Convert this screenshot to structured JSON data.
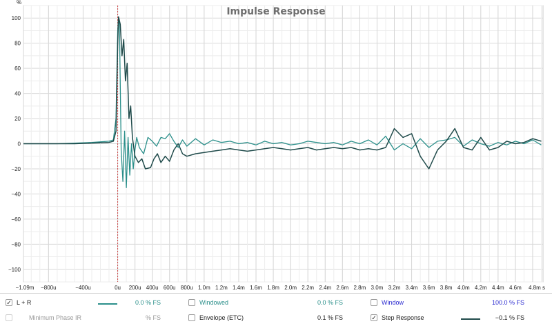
{
  "chart_data": {
    "type": "line",
    "title": "Impulse Response",
    "ylabel": "%",
    "xlabel": "s",
    "xlim": [
      -0.00109,
      0.00492
    ],
    "ylim": [
      -110,
      110
    ],
    "grid": true,
    "x_tick_values": [
      -0.00109,
      -0.0008,
      -0.0004,
      0,
      0.0002,
      0.0004,
      0.0006,
      0.0008,
      0.001,
      0.0012,
      0.0014,
      0.0016,
      0.0018,
      0.002,
      0.0022,
      0.0024,
      0.0026,
      0.0028,
      0.003,
      0.0032,
      0.0034,
      0.0036,
      0.0038,
      0.004,
      0.0042,
      0.0044,
      0.0046,
      0.0048
    ],
    "x_tick_labels": [
      "−1.09m",
      "−800u",
      "−400u",
      "0u",
      "200u",
      "400u",
      "600u",
      "800u",
      "1.0m",
      "1.2m",
      "1.4m",
      "1.6m",
      "1.8m",
      "2.0m",
      "2.2m",
      "2.4m",
      "2.6m",
      "2.8m",
      "3.0m",
      "3.2m",
      "3.4m",
      "3.6m",
      "3.8m",
      "4.0m",
      "4.2m",
      "4.4m",
      "4.6m",
      "4.8m s"
    ],
    "y_tick_values": [
      100,
      80,
      60,
      40,
      20,
      0,
      -20,
      -40,
      -60,
      -80,
      -100
    ],
    "y_tick_labels": [
      "100",
      "80",
      "60",
      "40",
      "20",
      "0",
      "−20",
      "−40",
      "−60",
      "−80",
      "−100"
    ],
    "marker_x": 0,
    "series": [
      {
        "name": "L + R",
        "color": "#2a8f8a",
        "x": [
          -0.00109,
          -0.0009,
          -0.0007,
          -0.0005,
          -0.0003,
          -0.0001,
          -5e-05,
          -2e-05,
          0,
          1e-05,
          2e-05,
          4e-05,
          6e-05,
          8e-05,
          0.0001,
          0.00012,
          0.00014,
          0.00016,
          0.00018,
          0.0002,
          0.00022,
          0.00025,
          0.0003,
          0.00035,
          0.0004,
          0.00045,
          0.0005,
          0.00055,
          0.0006,
          0.00065,
          0.0007,
          0.00075,
          0.0008,
          0.0009,
          0.001,
          0.0011,
          0.0012,
          0.0013,
          0.0014,
          0.0015,
          0.0016,
          0.0017,
          0.0018,
          0.0019,
          0.002,
          0.0021,
          0.0022,
          0.0023,
          0.0024,
          0.0025,
          0.0026,
          0.0027,
          0.0028,
          0.0029,
          0.003,
          0.0031,
          0.0032,
          0.0033,
          0.0034,
          0.0035,
          0.0036,
          0.0037,
          0.0038,
          0.0039,
          0.004,
          0.0041,
          0.0042,
          0.0043,
          0.0044,
          0.0045,
          0.0046,
          0.0047,
          0.0048,
          0.0049
        ],
        "values": [
          0,
          0,
          0,
          0.5,
          1,
          2,
          3,
          20,
          90,
          100,
          95,
          -5,
          -30,
          10,
          -35,
          5,
          -25,
          0,
          -20,
          -5,
          5,
          -3,
          -8,
          5,
          2,
          -2,
          5,
          4,
          8,
          2,
          -3,
          3,
          -2,
          4,
          -1,
          3,
          1,
          2,
          0,
          1,
          -1,
          2,
          0,
          1,
          -1,
          0,
          2,
          1,
          0,
          1,
          -1,
          2,
          0,
          3,
          -1,
          6,
          -5,
          0,
          -4,
          4,
          -3,
          2,
          3,
          5,
          -2,
          3,
          0,
          -2,
          1,
          -1,
          2,
          0,
          3,
          -1
        ]
      },
      {
        "name": "Step Response",
        "color": "#1f4a4a",
        "x": [
          -0.00109,
          -0.0009,
          -0.0007,
          -0.0005,
          -0.0003,
          -0.0001,
          -5e-05,
          -2e-05,
          0,
          1e-05,
          3e-05,
          5e-05,
          7e-05,
          9e-05,
          0.00011,
          0.00013,
          0.00015,
          0.00017,
          0.0002,
          0.00024,
          0.00028,
          0.00032,
          0.00038,
          0.00042,
          0.00046,
          0.0005,
          0.00055,
          0.0006,
          0.00065,
          0.0007,
          0.00075,
          0.0008,
          0.0009,
          0.001,
          0.0011,
          0.0012,
          0.0013,
          0.0014,
          0.0015,
          0.0016,
          0.0017,
          0.0018,
          0.0019,
          0.002,
          0.0021,
          0.0022,
          0.0023,
          0.0024,
          0.0025,
          0.0026,
          0.0027,
          0.0028,
          0.0029,
          0.003,
          0.0031,
          0.0032,
          0.0033,
          0.0034,
          0.0035,
          0.0036,
          0.0037,
          0.0038,
          0.0039,
          0.004,
          0.0041,
          0.0042,
          0.0043,
          0.0044,
          0.0045,
          0.0046,
          0.0047,
          0.0048,
          0.0049
        ],
        "values": [
          0,
          0,
          0,
          0,
          0.5,
          1,
          2,
          10,
          80,
          101,
          95,
          70,
          83,
          50,
          64,
          20,
          30,
          5,
          -10,
          -15,
          -12,
          -20,
          -19,
          -12,
          -8,
          -15,
          -10,
          -14,
          -5,
          0,
          -8,
          -10,
          -8,
          -7,
          -6,
          -5,
          -4,
          -5,
          -6,
          -5,
          -4,
          -3,
          -4,
          -5,
          -4,
          -3,
          -5,
          -4,
          -3,
          -4,
          -3,
          -5,
          -4,
          -5,
          -3,
          12,
          5,
          8,
          -10,
          -20,
          -5,
          2,
          12,
          -3,
          -5,
          5,
          -5,
          -3,
          2,
          0,
          1,
          4,
          2
        ]
      }
    ]
  },
  "legend": {
    "items": [
      {
        "id": "lr",
        "label": "L + R",
        "checked": true,
        "enabled": true,
        "label_color": "#222222",
        "value": "0.0 % FS",
        "value_color": "#2a8f8a",
        "swatch_color": "#2a8f8a"
      },
      {
        "id": "windowed",
        "label": "Windowed",
        "checked": false,
        "enabled": true,
        "label_color": "#2a8f8a",
        "value": "0.0 % FS",
        "value_color": "#2a8f8a"
      },
      {
        "id": "window",
        "label": "Window",
        "checked": false,
        "enabled": true,
        "label_color": "#2a2ad0",
        "value": "100.0 % FS",
        "value_color": "#2a2ad0"
      },
      {
        "id": "minphase",
        "label": "Minimum Phase IR",
        "checked": false,
        "enabled": false,
        "label_color": "#9a9a9a",
        "value": "% FS",
        "value_color": "#9a9a9a"
      },
      {
        "id": "envelope",
        "label": "Envelope (ETC)",
        "checked": false,
        "enabled": true,
        "label_color": "#222222",
        "value": "0.1 % FS",
        "value_color": "#222222"
      },
      {
        "id": "step",
        "label": "Step Response",
        "checked": true,
        "enabled": true,
        "label_color": "#222222",
        "value": "−0.1 % FS",
        "value_color": "#222222",
        "swatch_color": "#1f4a4a"
      }
    ],
    "check_mark": "✓"
  }
}
